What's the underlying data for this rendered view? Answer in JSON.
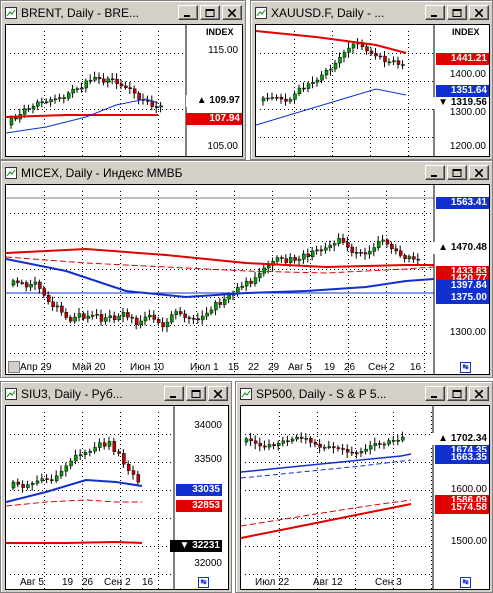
{
  "windows": {
    "brent": {
      "title": "BRENT, Daily - BRE...",
      "index_label": "INDEX",
      "axis_labels": [
        "115.00",
        "105.00"
      ],
      "tags": [
        {
          "text": "109.97",
          "style": "white",
          "arrow": "▲"
        },
        {
          "text": "107.94",
          "style": "red",
          "arrow": ""
        }
      ]
    },
    "xauusd": {
      "title": "XAUUSD.F, Daily - ...",
      "index_label": "INDEX",
      "axis_labels": [
        "1400.00",
        "1300.00",
        "1200.00"
      ],
      "tags": [
        {
          "text": "1441.21",
          "style": "red",
          "arrow": ""
        },
        {
          "text": "1351.64",
          "style": "blue",
          "arrow": ""
        },
        {
          "text": "1319.56",
          "style": "white",
          "arrow": "▼"
        }
      ]
    },
    "micex": {
      "title": "MICEX, Daily - Индекс ММВБ",
      "axis_labels": [
        "1300.00"
      ],
      "x_labels": [
        "Апр 29",
        "Май 20",
        "Июн 10",
        "Июл 1",
        "15",
        "22",
        "29",
        "Авг 5",
        "19",
        "26",
        "Сен 2",
        "16"
      ],
      "tags": [
        {
          "text": "1563.41",
          "style": "blue",
          "arrow": ""
        },
        {
          "text": "1470.48",
          "style": "white",
          "arrow": "▲"
        },
        {
          "text": "1433.83",
          "style": "red",
          "arrow": ""
        },
        {
          "text": "1420.77",
          "style": "red",
          "arrow": ""
        },
        {
          "text": "1397.84",
          "style": "blue",
          "arrow": ""
        },
        {
          "text": "1375.00",
          "style": "blue",
          "arrow": ""
        }
      ]
    },
    "siu3": {
      "title": "SIU3, Daily - Руб...",
      "axis_labels": [
        "34000",
        "33500",
        "32000"
      ],
      "x_labels": [
        "Авг 5",
        "19",
        "26",
        "Сен 2",
        "16"
      ],
      "tags": [
        {
          "text": "33035",
          "style": "blue",
          "arrow": ""
        },
        {
          "text": "32853",
          "style": "red",
          "arrow": ""
        },
        {
          "text": "32231",
          "style": "black",
          "arrow": "▼"
        }
      ]
    },
    "sp500": {
      "title": "SP500, Daily - S & P 5...",
      "axis_labels": [
        "1600.00",
        "1500.00"
      ],
      "x_labels": [
        "Июл 22",
        "Авг 12",
        "Сен 3"
      ],
      "tags": [
        {
          "text": "1702.34",
          "style": "white",
          "arrow": "▲"
        },
        {
          "text": "1674.35",
          "style": "blue",
          "arrow": ""
        },
        {
          "text": "1663.35",
          "style": "blue",
          "arrow": ""
        },
        {
          "text": "1586.09",
          "style": "red",
          "arrow": ""
        },
        {
          "text": "1574.58",
          "style": "red",
          "arrow": ""
        }
      ]
    }
  },
  "colors": {
    "bull": "#00a000",
    "bear": "#c00000",
    "ma_red": "#e00000",
    "ma_blue": "#1030d0",
    "grid": "#000000"
  }
}
